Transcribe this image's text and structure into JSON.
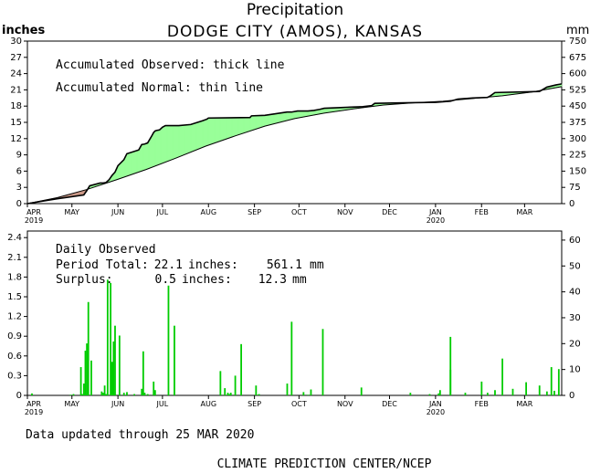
{
  "chart_data": {
    "type": "area",
    "title": "Precipitation",
    "subtitle": "DODGE CITY (AMOS), KANSAS",
    "x_ticks": [
      "APR",
      "MAY",
      "JUN",
      "JUL",
      "AUG",
      "SEP",
      "OCT",
      "NOV",
      "DEC",
      "JAN",
      "FEB",
      "MAR"
    ],
    "x_year_labels": [
      {
        "month": "APR",
        "year": "2019"
      },
      {
        "month": "JAN",
        "year": "2020"
      }
    ],
    "x_range_days": [
      0,
      360
    ],
    "accumulated": {
      "y_unit_left": "inches",
      "y_unit_right": "mm",
      "ylim": [
        0,
        30
      ],
      "y_ticks_left": [
        "0",
        "3",
        "6",
        "9",
        "12",
        "15",
        "18",
        "21",
        "24",
        "27",
        "30"
      ],
      "y_ticks_right": [
        "0",
        "75",
        "150",
        "225",
        "300",
        "375",
        "450",
        "525",
        "600",
        "675",
        "750"
      ],
      "legend": [
        "Accumulated Observed: thick line",
        "Accumulated Normal: thin line"
      ],
      "above_normal_color": "#99ff99",
      "below_normal_color": "#cc9988",
      "series": [
        {
          "name": "Accumulated Observed",
          "style": "thick",
          "x": [
            0,
            20,
            38,
            40,
            42,
            49,
            51,
            53,
            55,
            57,
            59,
            61,
            65,
            67,
            75,
            77,
            79,
            81,
            84,
            85,
            86,
            87,
            89,
            91,
            93,
            102,
            110,
            118,
            121,
            122,
            150,
            151,
            160,
            175,
            178,
            182,
            189,
            193,
            197,
            200,
            226,
            232,
            234,
            250,
            275,
            285,
            290,
            300,
            310,
            312,
            315,
            345,
            350,
            356,
            360
          ],
          "y": [
            0,
            0.9,
            1.6,
            2.4,
            3.3,
            3.8,
            3.8,
            3.9,
            4.4,
            5.2,
            5.8,
            7.0,
            8.1,
            9.2,
            9.9,
            10.9,
            11.0,
            11.2,
            12.6,
            13.1,
            13.4,
            13.5,
            13.6,
            14.1,
            14.4,
            14.4,
            14.6,
            15.3,
            15.6,
            15.8,
            15.9,
            16.2,
            16.3,
            16.9,
            16.9,
            17.1,
            17.1,
            17.2,
            17.4,
            17.6,
            17.9,
            18.1,
            18.5,
            18.6,
            18.7,
            18.9,
            19.3,
            19.5,
            19.6,
            19.9,
            20.5,
            20.7,
            21.5,
            21.9,
            22.1
          ]
        },
        {
          "name": "Accumulated Normal",
          "style": "thin",
          "x": [
            0,
            20,
            40,
            60,
            80,
            100,
            120,
            140,
            160,
            180,
            200,
            220,
            240,
            260,
            280,
            300,
            320,
            340,
            360
          ],
          "y": [
            0,
            1.1,
            2.6,
            4.4,
            6.3,
            8.4,
            10.6,
            12.5,
            14.3,
            15.7,
            16.7,
            17.5,
            18.2,
            18.6,
            18.9,
            19.4,
            19.9,
            20.6,
            21.6
          ]
        }
      ]
    },
    "daily": {
      "title": "Daily Observed",
      "period_total_label": "Period Total:",
      "period_total_inches": "22.1",
      "period_total_mm": "561.1",
      "surplus_label": "Surplus:",
      "surplus_inches": "0.5",
      "surplus_mm": "12.3",
      "inches_unit": "inches:",
      "mm_unit": "mm",
      "ylim": [
        0,
        2.5
      ],
      "y_ticks_left": [
        "0",
        "0.3",
        "0.6",
        "0.9",
        "1.2",
        "1.5",
        "1.8",
        "2.1",
        "2.4"
      ],
      "y_ticks_right": [
        "0",
        "10",
        "20",
        "30",
        "40",
        "50",
        "60"
      ],
      "bar_color": "#00cc00",
      "bars": {
        "day": [
          3,
          29,
          31,
          36,
          37,
          38,
          39,
          40,
          41,
          43,
          50,
          51,
          52,
          53,
          54,
          56,
          57,
          58,
          59,
          62,
          65,
          67,
          72,
          77,
          78,
          79,
          81,
          85,
          86,
          95,
          99,
          130,
          133,
          135,
          136,
          137,
          140,
          144,
          154,
          156,
          175,
          178,
          186,
          189,
          191,
          199,
          225,
          258,
          271,
          277,
          278,
          285,
          285,
          295,
          306,
          310,
          315,
          320,
          327,
          336,
          345,
          350,
          353,
          355,
          358
        ],
        "value": [
          0.03,
          0.01,
          0.02,
          0.43,
          0.02,
          0.18,
          0.68,
          0.79,
          1.42,
          0.53,
          0.06,
          0.04,
          0.15,
          0.02,
          1.76,
          1.71,
          0.51,
          0.82,
          1.06,
          0.91,
          0.04,
          0.05,
          0.02,
          0.1,
          0.67,
          0.04,
          0.02,
          0.21,
          0.08,
          1.67,
          1.06,
          0.37,
          0.11,
          0.04,
          0.02,
          0.04,
          0.3,
          0.78,
          0.15,
          0.02,
          0.18,
          1.12,
          0.05,
          0.01,
          0.09,
          1.01,
          0.12,
          0.04,
          0.02,
          0.03,
          0.08,
          0.39,
          0.89,
          0.04,
          0.21,
          0.04,
          0.08,
          0.56,
          0.1,
          0.2,
          0.15,
          0.06,
          0.43,
          0.07,
          0.4
        ]
      }
    }
  },
  "footer": {
    "updated": "Data updated through 25 MAR 2020",
    "credit": "CLIMATE PREDICTION CENTER/NCEP"
  }
}
